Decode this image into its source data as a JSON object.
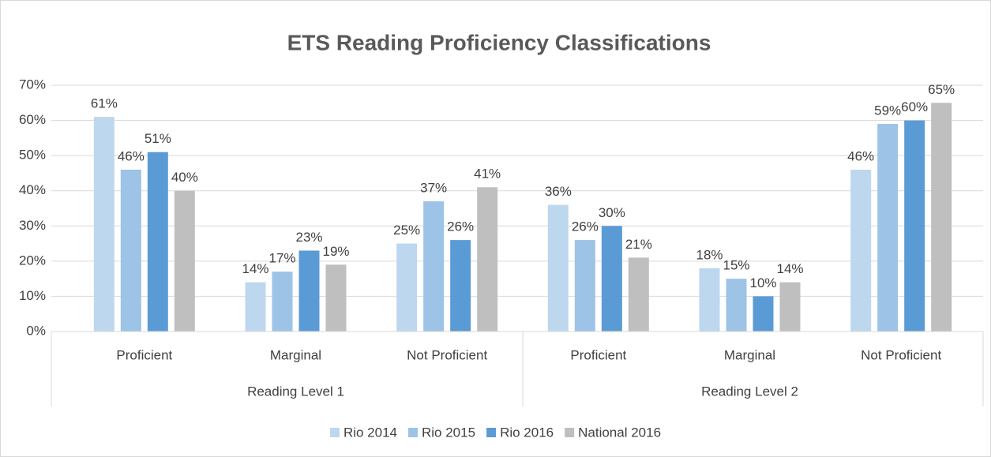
{
  "chart_data": {
    "type": "bar",
    "title": "ETS Reading Proficiency Classifications",
    "categories": [
      "Proficient",
      "Marginal",
      "Not Proficient",
      "Proficient",
      "Marginal",
      "Not Proficient"
    ],
    "category_groups": [
      {
        "name": "Reading Level 1",
        "count": 3
      },
      {
        "name": "Reading Level 2",
        "count": 3
      }
    ],
    "series": [
      {
        "name": "Rio 2014",
        "color": "#bdd7ee",
        "values": [
          61,
          14,
          25,
          36,
          18,
          46
        ],
        "value_labels": [
          "61%",
          "14%",
          "25%",
          "36%",
          "18%",
          "46%"
        ]
      },
      {
        "name": "Rio 2015",
        "color": "#9dc3e6",
        "values": [
          46,
          17,
          37,
          26,
          15,
          59
        ],
        "value_labels": [
          "46%",
          "17%",
          "37%",
          "26%",
          "15%",
          "59%"
        ]
      },
      {
        "name": "Rio 2016",
        "color": "#5b9bd5",
        "values": [
          51,
          23,
          26,
          30,
          10,
          60
        ],
        "value_labels": [
          "51%",
          "23%",
          "26%",
          "30%",
          "10%",
          "60%"
        ]
      },
      {
        "name": "National 2016",
        "color": "#bfbfbf",
        "values": [
          40,
          19,
          41,
          21,
          14,
          65
        ],
        "value_labels": [
          "40%",
          "19%",
          "41%",
          "21%",
          "14%",
          "65%"
        ]
      }
    ],
    "ylim": [
      0,
      70
    ],
    "yticks": [
      {
        "value": 0,
        "label": "0%"
      },
      {
        "value": 10,
        "label": "10%"
      },
      {
        "value": 20,
        "label": "20%"
      },
      {
        "value": 30,
        "label": "30%"
      },
      {
        "value": 40,
        "label": "40%"
      },
      {
        "value": 50,
        "label": "50%"
      },
      {
        "value": 60,
        "label": "60%"
      },
      {
        "value": 70,
        "label": "70%"
      }
    ],
    "grid": true,
    "legend": "bottom"
  }
}
